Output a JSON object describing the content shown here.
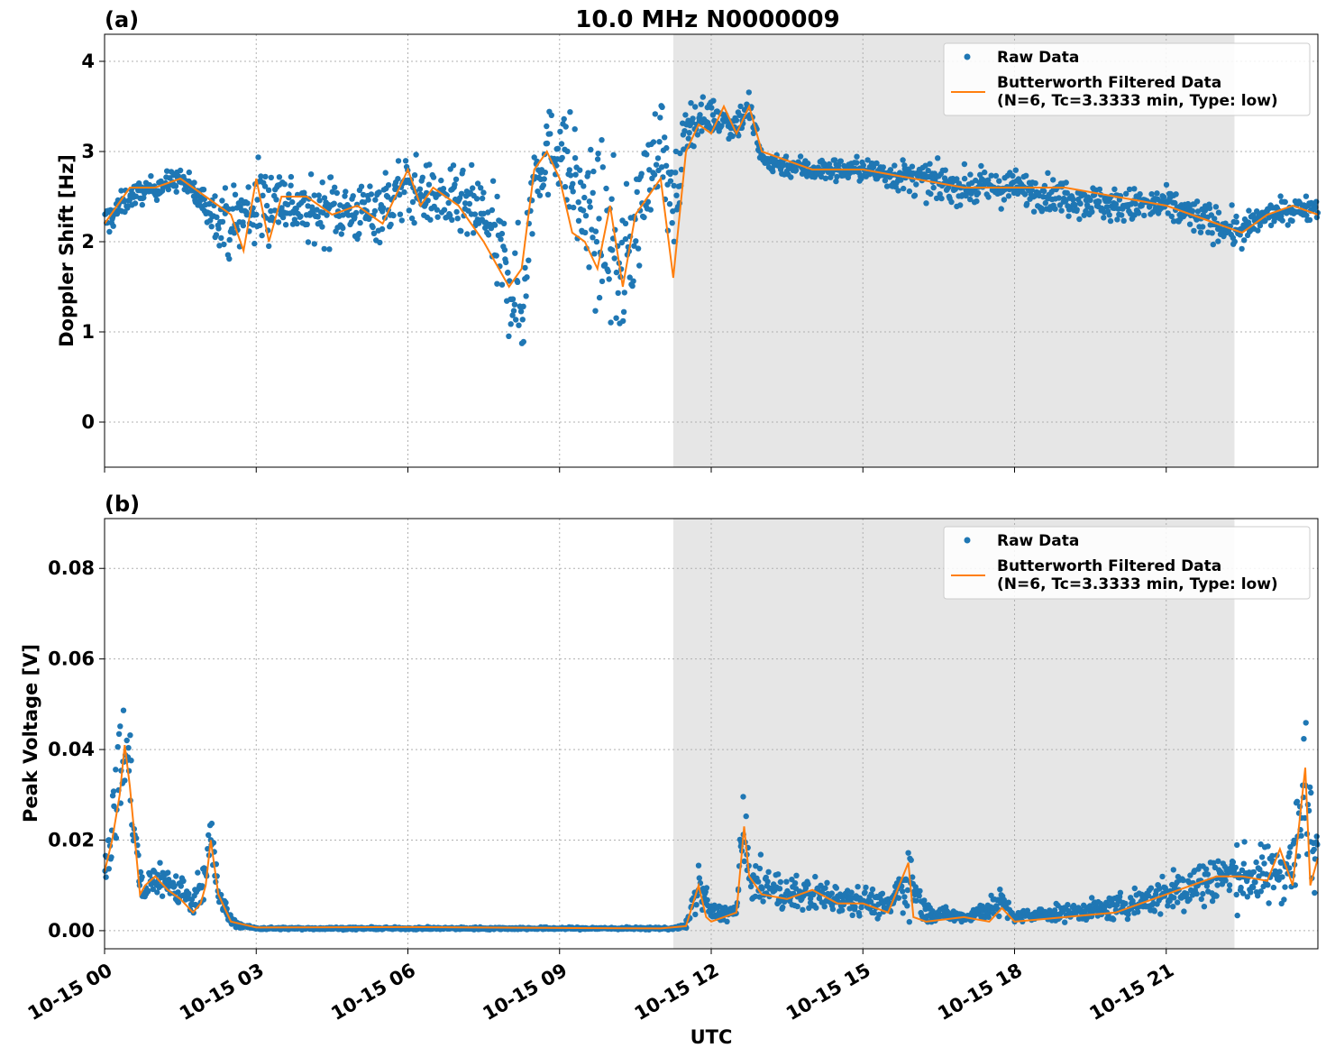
{
  "figure": {
    "title": "10.0 MHz N0000009",
    "xlabel": "UTC",
    "x_tick_labels": [
      "10-15 00",
      "10-15 03",
      "10-15 06",
      "10-15 09",
      "10-15 12",
      "10-15 15",
      "10-15 18",
      "10-15 21"
    ],
    "colors": {
      "raw": "#1f77b4",
      "filtered": "#ff7f0e",
      "shade": "#e6e6e6",
      "grid": "#b0b0b0"
    }
  },
  "chart_data": [
    {
      "type": "scatter",
      "panel_label": "(a)",
      "ylabel": "Doppler Shift [Hz]",
      "xlim": [
        0,
        24
      ],
      "ylim": [
        -0.5,
        4.3
      ],
      "y_ticks": [
        0,
        1,
        2,
        3,
        4
      ],
      "y_tick_labels": [
        "0",
        "1",
        "2",
        "3",
        "4"
      ],
      "x_unit": "hours UTC on 10-15",
      "grid": true,
      "shaded_region": [
        11.25,
        22.35
      ],
      "legend": {
        "placement": "upper right",
        "entries": [
          "Raw Data",
          "Butterworth Filtered Data",
          "(N=6, Tc=3.3333 min, Type: low)"
        ]
      },
      "series": [
        {
          "name": "Raw Data",
          "kind": "points",
          "x": [
            0,
            0.5,
            1,
            1.5,
            2,
            2.5,
            3,
            3.5,
            4,
            4.5,
            5,
            5.5,
            6,
            6.5,
            7,
            7.5,
            8,
            8.25,
            8.5,
            9,
            9.5,
            10,
            10.25,
            10.5,
            11,
            11.25,
            11.5,
            12,
            12.5,
            12.75,
            13,
            14,
            15,
            16,
            17,
            18,
            19,
            20,
            21,
            22,
            22.5,
            23,
            24
          ],
          "y_center": [
            2.2,
            2.5,
            2.6,
            2.7,
            2.4,
            2.2,
            2.4,
            2.5,
            2.3,
            2.4,
            2.3,
            2.4,
            2.6,
            2.5,
            2.4,
            2.3,
            1.6,
            1.2,
            2.8,
            3.1,
            2.3,
            2.0,
            1.6,
            2.2,
            3.2,
            2.2,
            3.3,
            3.4,
            3.3,
            3.5,
            2.9,
            2.8,
            2.8,
            2.7,
            2.6,
            2.6,
            2.5,
            2.4,
            2.4,
            2.2,
            2.1,
            2.3,
            2.4
          ],
          "y_spread": [
            0.3,
            0.2,
            0.2,
            0.2,
            0.3,
            0.6,
            0.8,
            0.6,
            0.5,
            0.6,
            0.5,
            0.6,
            0.6,
            0.5,
            0.6,
            0.7,
            1.0,
            1.2,
            0.7,
            0.8,
            1.2,
            1.4,
            1.3,
            1.1,
            0.7,
            1.0,
            0.4,
            0.3,
            0.3,
            0.3,
            0.2,
            0.2,
            0.2,
            0.3,
            0.3,
            0.3,
            0.3,
            0.3,
            0.3,
            0.3,
            0.3,
            0.2,
            0.2
          ]
        },
        {
          "name": "Butterworth Filtered Data",
          "kind": "line",
          "x": [
            0,
            0.25,
            0.5,
            1,
            1.5,
            2,
            2.5,
            2.75,
            3,
            3.25,
            3.5,
            4,
            4.5,
            5,
            5.5,
            6,
            6.25,
            6.5,
            7,
            7.25,
            7.5,
            8,
            8.25,
            8.5,
            8.75,
            9,
            9.25,
            9.5,
            9.75,
            10,
            10.25,
            10.5,
            10.75,
            11,
            11.25,
            11.5,
            11.75,
            12,
            12.25,
            12.5,
            12.75,
            13,
            13.5,
            14,
            15,
            16,
            17,
            18,
            19,
            20,
            21,
            21.5,
            22,
            22.5,
            23,
            23.5,
            24
          ],
          "y": [
            2.2,
            2.4,
            2.6,
            2.6,
            2.7,
            2.5,
            2.3,
            1.9,
            2.7,
            2.0,
            2.5,
            2.5,
            2.3,
            2.4,
            2.2,
            2.8,
            2.4,
            2.6,
            2.4,
            2.2,
            2.0,
            1.5,
            1.7,
            2.8,
            3.0,
            2.7,
            2.1,
            2.0,
            1.7,
            2.4,
            1.5,
            2.3,
            2.5,
            2.7,
            1.6,
            3.0,
            3.3,
            3.2,
            3.5,
            3.2,
            3.5,
            3.0,
            2.9,
            2.8,
            2.8,
            2.7,
            2.6,
            2.6,
            2.6,
            2.5,
            2.4,
            2.3,
            2.2,
            2.1,
            2.3,
            2.4,
            2.3
          ]
        }
      ]
    },
    {
      "type": "scatter",
      "panel_label": "(b)",
      "ylabel": "Peak Voltage [V]",
      "xlim": [
        0,
        24
      ],
      "ylim": [
        -0.004,
        0.091
      ],
      "y_ticks": [
        0,
        0.02,
        0.04,
        0.06,
        0.08
      ],
      "y_tick_labels": [
        "0.00",
        "0.02",
        "0.04",
        "0.06",
        "0.08"
      ],
      "x_unit": "hours UTC on 10-15",
      "grid": true,
      "shaded_region": [
        11.25,
        22.35
      ],
      "legend": {
        "placement": "upper right",
        "entries": [
          "Raw Data",
          "Butterworth Filtered Data",
          "(N=6, Tc=3.3333 min, Type: low)"
        ]
      },
      "series": [
        {
          "name": "Raw Data",
          "kind": "points",
          "x": [
            0,
            0.15,
            0.3,
            0.4,
            0.5,
            0.6,
            0.75,
            1,
            1.5,
            1.75,
            2,
            2.1,
            2.25,
            2.5,
            2.75,
            3,
            6,
            9,
            11,
            11.25,
            11.5,
            11.75,
            12,
            12.5,
            12.6,
            12.75,
            13,
            13.5,
            14,
            15,
            15.5,
            15.9,
            16.25,
            17,
            17.75,
            18,
            19,
            20,
            21,
            22,
            22.5,
            23,
            23.5,
            23.75,
            24
          ],
          "y_center": [
            0.015,
            0.022,
            0.035,
            0.04,
            0.035,
            0.02,
            0.008,
            0.012,
            0.009,
            0.006,
            0.014,
            0.02,
            0.008,
            0.002,
            0.001,
            0.0005,
            0.0005,
            0.0005,
            0.0005,
            0.0005,
            0.001,
            0.01,
            0.004,
            0.004,
            0.022,
            0.012,
            0.01,
            0.008,
            0.008,
            0.007,
            0.005,
            0.012,
            0.004,
            0.003,
            0.006,
            0.003,
            0.004,
            0.005,
            0.008,
            0.012,
            0.012,
            0.012,
            0.015,
            0.03,
            0.015
          ],
          "y_spread": [
            0.01,
            0.012,
            0.02,
            0.022,
            0.018,
            0.01,
            0.005,
            0.007,
            0.006,
            0.004,
            0.008,
            0.015,
            0.005,
            0.002,
            0.0005,
            0.0004,
            0.0004,
            0.0004,
            0.0004,
            0.0004,
            0.001,
            0.008,
            0.003,
            0.003,
            0.015,
            0.008,
            0.007,
            0.006,
            0.006,
            0.005,
            0.004,
            0.012,
            0.003,
            0.002,
            0.005,
            0.002,
            0.003,
            0.004,
            0.007,
            0.01,
            0.01,
            0.01,
            0.012,
            0.03,
            0.01
          ]
        },
        {
          "name": "Butterworth Filtered Data",
          "kind": "line",
          "x": [
            0,
            0.15,
            0.3,
            0.4,
            0.5,
            0.6,
            0.7,
            0.8,
            1,
            1.25,
            1.5,
            1.75,
            1.9,
            2,
            2.1,
            2.25,
            2.5,
            3,
            6,
            9,
            11,
            11.5,
            11.75,
            11.9,
            12,
            12.25,
            12.5,
            12.65,
            12.75,
            13,
            13.5,
            14,
            14.5,
            15,
            15.5,
            15.9,
            16,
            16.25,
            17,
            17.5,
            17.75,
            18,
            19,
            20,
            21,
            21.5,
            22,
            22.5,
            23,
            23.25,
            23.5,
            23.75,
            23.85,
            24
          ],
          "y": [
            0.013,
            0.02,
            0.03,
            0.041,
            0.032,
            0.02,
            0.008,
            0.01,
            0.012,
            0.009,
            0.007,
            0.004,
            0.006,
            0.01,
            0.02,
            0.008,
            0.002,
            0.0007,
            0.0008,
            0.0006,
            0.0005,
            0.001,
            0.01,
            0.003,
            0.002,
            0.003,
            0.004,
            0.023,
            0.012,
            0.008,
            0.007,
            0.009,
            0.006,
            0.006,
            0.004,
            0.015,
            0.003,
            0.002,
            0.003,
            0.002,
            0.005,
            0.002,
            0.003,
            0.004,
            0.008,
            0.01,
            0.012,
            0.012,
            0.011,
            0.018,
            0.01,
            0.036,
            0.01,
            0.016
          ]
        }
      ]
    }
  ]
}
